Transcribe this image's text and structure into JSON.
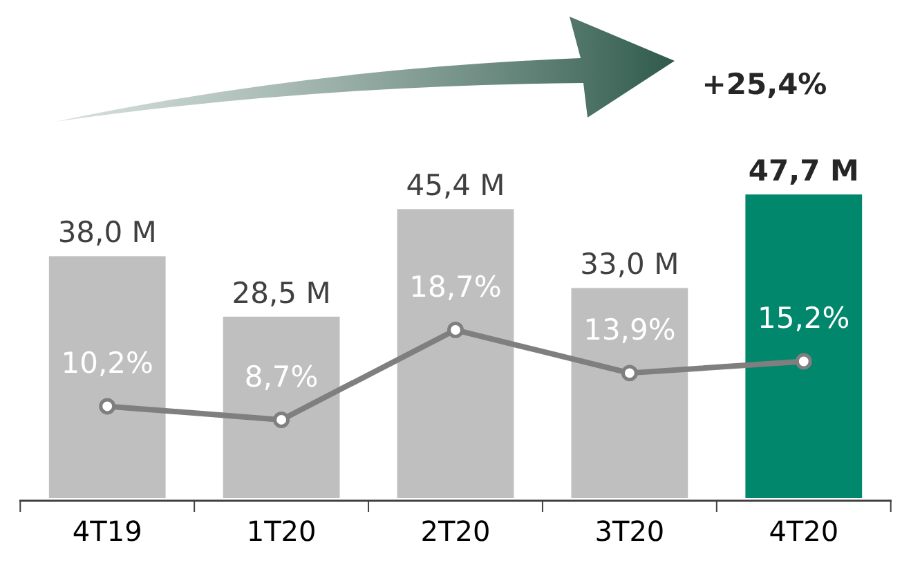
{
  "chart_data": {
    "type": "bar",
    "categories": [
      "4T19",
      "1T20",
      "2T20",
      "3T20",
      "4T20"
    ],
    "tick_labels": "x",
    "series": [
      {
        "colors": [
          "#bfbfbf",
          "#bfbfbf",
          "#bfbfbf",
          "#bfbfbf",
          "#00876c"
        ],
        "values": [
          38.0,
          28.5,
          45.4,
          33.0,
          47.7
        ],
        "value_labels": [
          "38,0 M",
          "28,5 M",
          "45,4 M",
          "33,0 M",
          "47,7 M"
        ]
      },
      {
        "type": "line",
        "axis": "y2",
        "color": "#7f7f7f",
        "marker": "circle",
        "values": [
          10.2,
          8.7,
          18.7,
          13.9,
          15.2
        ],
        "value_labels": [
          "10,2%",
          "8,7%",
          "18,7%",
          "13,9%",
          "15,2%"
        ]
      }
    ],
    "annotations": [
      "+25,4%"
    ]
  }
}
